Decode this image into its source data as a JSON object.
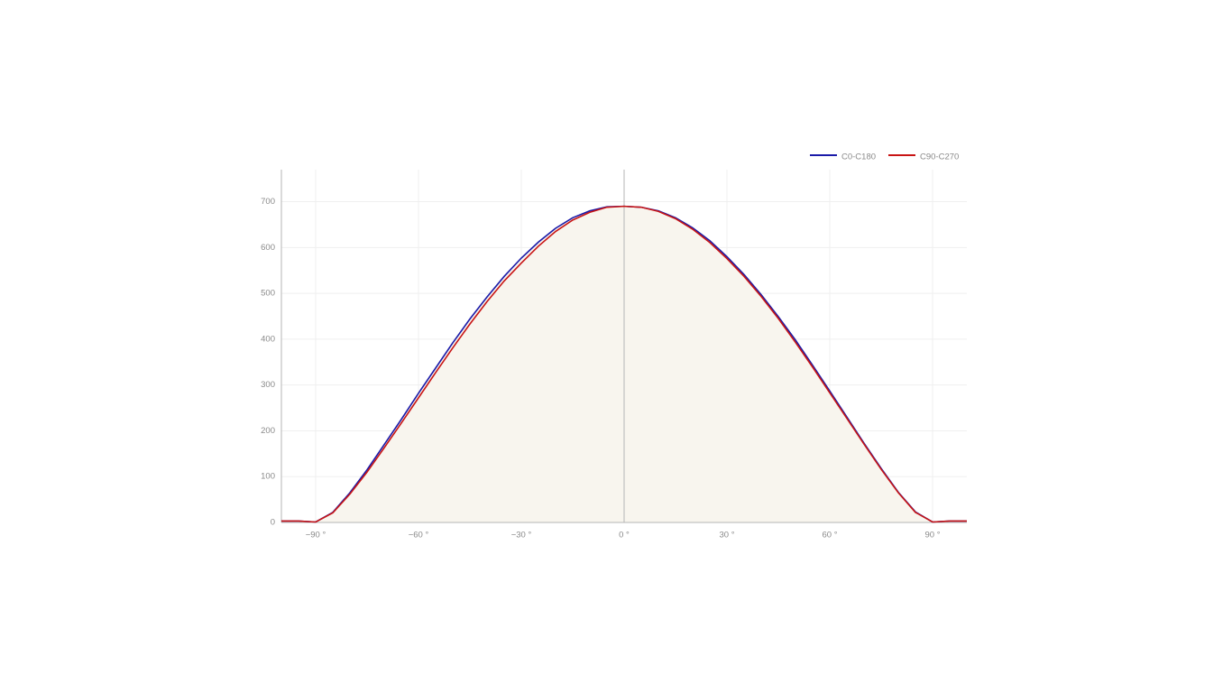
{
  "chart_data": {
    "type": "line",
    "x": [
      -100,
      -95,
      -90,
      -85,
      -80,
      -75,
      -70,
      -65,
      -60,
      -55,
      -50,
      -45,
      -40,
      -35,
      -30,
      -25,
      -20,
      -15,
      -10,
      -5,
      0,
      5,
      10,
      15,
      20,
      25,
      30,
      35,
      40,
      45,
      50,
      55,
      60,
      65,
      70,
      75,
      80,
      85,
      90,
      95,
      100
    ],
    "series": [
      {
        "name": "C0-C180",
        "color": "#1a1aa8",
        "fill": "#f8f5ee",
        "values": [
          3,
          3,
          1,
          22,
          65,
          115,
          170,
          225,
          282,
          337,
          392,
          444,
          492,
          537,
          577,
          612,
          642,
          665,
          680,
          689,
          690,
          688,
          680,
          665,
          643,
          615,
          580,
          541,
          497,
          449,
          398,
          343,
          287,
          230,
          173,
          118,
          66,
          23,
          1,
          3,
          3
        ]
      },
      {
        "name": "C90-C270",
        "color": "#c81414",
        "values": [
          3,
          3,
          1,
          21,
          62,
          110,
          163,
          217,
          272,
          327,
          381,
          433,
          482,
          527,
          566,
          603,
          635,
          660,
          677,
          688,
          690,
          688,
          679,
          663,
          640,
          611,
          576,
          537,
          493,
          445,
          393,
          339,
          283,
          227,
          171,
          116,
          65,
          22,
          1,
          3,
          3
        ]
      }
    ],
    "xlim": [
      -100,
      100
    ],
    "ylim": [
      0,
      770
    ],
    "xticks": [
      {
        "value": -90,
        "label": "−90 °"
      },
      {
        "value": -60,
        "label": "−60 °"
      },
      {
        "value": -30,
        "label": "−30 °"
      },
      {
        "value": 0,
        "label": "0 °"
      },
      {
        "value": 30,
        "label": "30 °"
      },
      {
        "value": 60,
        "label": "60 °"
      },
      {
        "value": 90,
        "label": "90 °"
      }
    ],
    "yticks": [
      0,
      100,
      200,
      300,
      400,
      500,
      600,
      700
    ],
    "grid": true,
    "legend": "top-right"
  }
}
